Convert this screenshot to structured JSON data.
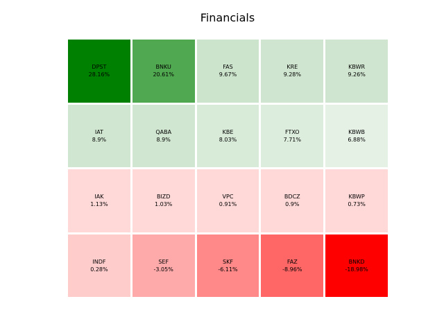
{
  "chart_data": {
    "type": "heatmap",
    "title": "Financials",
    "rows": 4,
    "cols": 5,
    "colors": {
      "positive": "#008000",
      "negative": "#ff0000"
    },
    "cells": [
      {
        "ticker": "DPST",
        "label": "28.16%",
        "value": 28.16,
        "color": "#008000"
      },
      {
        "ticker": "BNKU",
        "label": "20.61%",
        "value": 20.61,
        "color": "#50a850"
      },
      {
        "ticker": "FAS",
        "label": "9.67%",
        "value": 9.67,
        "color": "#cce3cc"
      },
      {
        "ticker": "KRE",
        "label": "9.28%",
        "value": 9.28,
        "color": "#cfe5cf"
      },
      {
        "ticker": "KBWR",
        "label": "9.26%",
        "value": 9.26,
        "color": "#cfe5cf"
      },
      {
        "ticker": "IAT",
        "label": "8.9%",
        "value": 8.9,
        "color": "#d0e6d0"
      },
      {
        "ticker": "QABA",
        "label": "8.9%",
        "value": 8.9,
        "color": "#d0e6d0"
      },
      {
        "ticker": "KBE",
        "label": "8.03%",
        "value": 8.03,
        "color": "#d8ead8"
      },
      {
        "ticker": "FTXO",
        "label": "7.71%",
        "value": 7.71,
        "color": "#ddeddd"
      },
      {
        "ticker": "KBWB",
        "label": "6.88%",
        "value": 6.88,
        "color": "#e6f1e6"
      },
      {
        "ticker": "IAK",
        "label": "1.13%",
        "value": 1.13,
        "color": "#ffd8d8"
      },
      {
        "ticker": "BIZD",
        "label": "1.03%",
        "value": 1.03,
        "color": "#ffd8d8"
      },
      {
        "ticker": "VPC",
        "label": "0.91%",
        "value": 0.91,
        "color": "#ffd8d8"
      },
      {
        "ticker": "BDCZ",
        "label": "0.9%",
        "value": 0.9,
        "color": "#ffd8d8"
      },
      {
        "ticker": "KBWP",
        "label": "0.73%",
        "value": 0.73,
        "color": "#ffd8d8"
      },
      {
        "ticker": "INDF",
        "label": "0.28%",
        "value": 0.28,
        "color": "#ffcccc"
      },
      {
        "ticker": "SEF",
        "label": "-3.05%",
        "value": -3.05,
        "color": "#ffaaaa"
      },
      {
        "ticker": "SKF",
        "label": "-6.11%",
        "value": -6.11,
        "color": "#ff8888"
      },
      {
        "ticker": "FAZ",
        "label": "-8.96%",
        "value": -8.96,
        "color": "#ff6666"
      },
      {
        "ticker": "BNKD",
        "label": "-18.98%",
        "value": -18.98,
        "color": "#ff0000"
      }
    ]
  }
}
